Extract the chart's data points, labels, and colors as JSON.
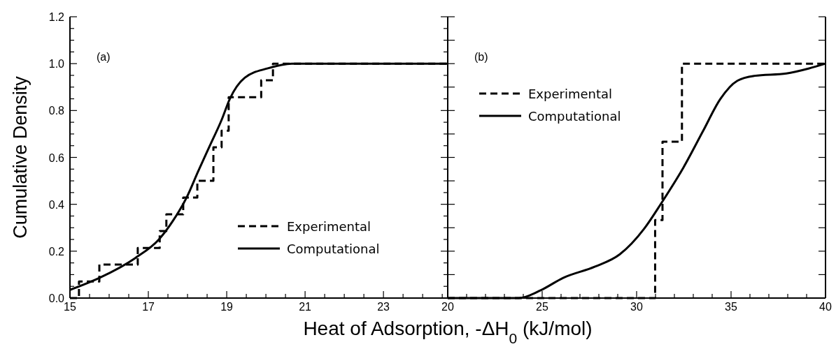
{
  "chart_data": [
    {
      "type": "line",
      "xlabel": "Heat of Adsorption, -ΔH$_{0}$ (kJ/mol)",
      "ylabel": "Cumulative Density",
      "annotations": [
        "(a)"
      ],
      "legend": "center right",
      "xlim": [
        15,
        24.64
      ],
      "xticks": [
        15,
        {
          "value": 15.5,
          "label": null
        },
        {
          "value": 16,
          "label": null
        },
        {
          "value": 16.5,
          "label": null
        },
        17,
        {
          "value": 17.5,
          "label": null
        },
        {
          "value": 18,
          "label": null
        },
        {
          "value": 18.5,
          "label": null
        },
        19,
        {
          "value": 19.5,
          "label": null
        },
        {
          "value": 20,
          "label": null
        },
        {
          "value": 20.5,
          "label": null
        },
        21,
        {
          "value": 21.5,
          "label": null
        },
        {
          "value": 22,
          "label": null
        },
        {
          "value": 22.5,
          "label": null
        },
        23,
        {
          "value": 23.5,
          "label": null
        },
        {
          "value": 24,
          "label": null
        },
        {
          "value": 24.5,
          "label": null
        }
      ],
      "ylim": [
        0,
        1.2
      ],
      "yticks": [
        {
          "value": 0,
          "label": "0.0"
        },
        {
          "value": 0.05,
          "label": null
        },
        {
          "value": 0.1,
          "label": null
        },
        {
          "value": 0.15,
          "label": null
        },
        0.2,
        {
          "value": 0.25,
          "label": null
        },
        {
          "value": 0.3,
          "label": null
        },
        {
          "value": 0.35,
          "label": null
        },
        0.4,
        {
          "value": 0.45,
          "label": null
        },
        {
          "value": 0.5,
          "label": null
        },
        {
          "value": 0.55,
          "label": null
        },
        0.6,
        {
          "value": 0.65,
          "label": null
        },
        {
          "value": 0.7,
          "label": null
        },
        {
          "value": 0.75,
          "label": null
        },
        0.8,
        {
          "value": 0.85,
          "label": null
        },
        {
          "value": 0.9,
          "label": null
        },
        {
          "value": 0.95,
          "label": null
        },
        {
          "value": 1,
          "label": "1.0"
        },
        {
          "value": 1.05,
          "label": null
        },
        {
          "value": 1.1,
          "label": null
        },
        {
          "value": 1.15,
          "label": null
        },
        1.2
      ],
      "series": [
        {
          "name": "Experimental",
          "type": "step",
          "color": "#000000",
          "line_style": "dashed",
          "x": [
            15,
            15.23,
            15.75,
            16.73,
            17.29,
            17.46,
            17.89,
            18.25,
            18.66,
            18.87,
            19.05,
            19.88,
            20.18,
            24.64
          ],
          "values": [
            0,
            0.071,
            0.143,
            0.214,
            0.286,
            0.357,
            0.429,
            0.5,
            0.643,
            0.714,
            0.857,
            0.929,
            1.0,
            1.0
          ]
        },
        {
          "name": "Computational",
          "type": "line",
          "color": "#000000",
          "line_style": "solid",
          "x": [
            15,
            15.75,
            16.66,
            17.27,
            17.63,
            17.98,
            18.27,
            18.57,
            18.87,
            19.08,
            19.46,
            20.05,
            20.66,
            24.64
          ],
          "values": [
            0.035,
            0.086,
            0.17,
            0.25,
            0.33,
            0.43,
            0.54,
            0.65,
            0.76,
            0.85,
            0.94,
            0.98,
            1.0,
            1.0
          ]
        }
      ]
    },
    {
      "type": "line",
      "annotations": [
        "(b)"
      ],
      "legend": "top left",
      "tick_labels": "x",
      "xlim": [
        20,
        40
      ],
      "xticks": [
        20,
        {
          "value": 21,
          "label": null
        },
        {
          "value": 22,
          "label": null
        },
        {
          "value": 23,
          "label": null
        },
        {
          "value": 24,
          "label": null
        },
        25,
        {
          "value": 26,
          "label": null
        },
        {
          "value": 27,
          "label": null
        },
        {
          "value": 28,
          "label": null
        },
        {
          "value": 29,
          "label": null
        },
        30,
        {
          "value": 31,
          "label": null
        },
        {
          "value": 32,
          "label": null
        },
        {
          "value": 33,
          "label": null
        },
        {
          "value": 34,
          "label": null
        },
        35,
        {
          "value": 36,
          "label": null
        },
        {
          "value": 37,
          "label": null
        },
        {
          "value": 38,
          "label": null
        },
        {
          "value": 39,
          "label": null
        },
        40
      ],
      "ylim": [
        0,
        1.2
      ],
      "yticks": [
        0,
        0.1,
        0.2,
        0.3,
        0.4,
        0.5,
        0.6,
        0.7,
        0.8,
        0.9,
        1,
        1.1,
        1.2
      ],
      "series": [
        {
          "name": "Experimental",
          "type": "step",
          "color": "#000000",
          "line_style": "dashed",
          "x": [
            20,
            30.98,
            31.37,
            32.4,
            40
          ],
          "values": [
            0,
            0.333,
            0.667,
            1.0,
            1.0
          ]
        },
        {
          "name": "Computational",
          "type": "line",
          "color": "#000000",
          "line_style": "solid",
          "x": [
            20,
            23.77,
            24.94,
            26.11,
            27.8,
            29.1,
            30.4,
            31.31,
            32.48,
            33.52,
            34.43,
            35.33,
            36.24,
            37.93,
            39.1,
            40
          ],
          "values": [
            0,
            0,
            0.034,
            0.086,
            0.134,
            0.186,
            0.296,
            0.405,
            0.557,
            0.713,
            0.849,
            0.927,
            0.948,
            0.958,
            0.979,
            1.0
          ]
        }
      ]
    }
  ]
}
